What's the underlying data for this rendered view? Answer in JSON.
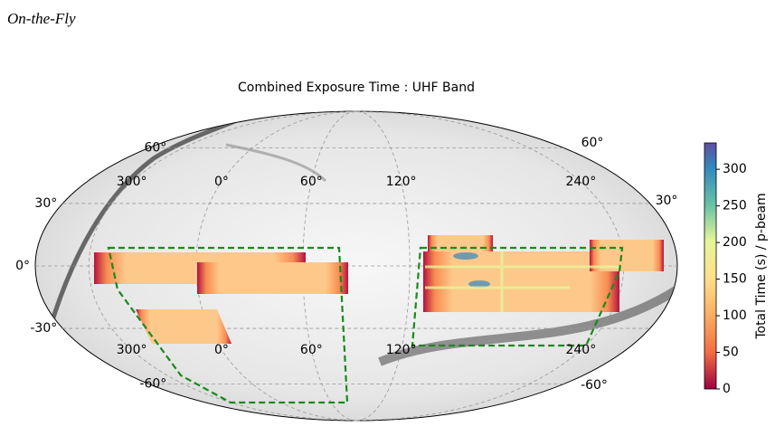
{
  "heading": "On-the-Fly",
  "chart_data": {
    "type": "mollweide",
    "title": "Combined Exposure Time : UHF Band",
    "grid": true,
    "lon_ticks": [
      {
        "value": 300,
        "label": "300°"
      },
      {
        "value": 0,
        "label": "0°"
      },
      {
        "value": 60,
        "label": "60°"
      },
      {
        "value": 120,
        "label": "120°"
      },
      {
        "value": 240,
        "label": "240°"
      }
    ],
    "lat_ticks": [
      {
        "value": 60,
        "label": "60°"
      },
      {
        "value": 30,
        "label": "30°"
      },
      {
        "value": 0,
        "label": "0°"
      },
      {
        "value": -30,
        "label": "-30°"
      },
      {
        "value": -60,
        "label": "-60°"
      }
    ],
    "colorbar": {
      "label": "Total Time (s) / p-beam",
      "lim": [
        0,
        336
      ],
      "ticks": [
        0,
        50,
        100,
        150,
        200,
        250,
        300
      ]
    }
  }
}
